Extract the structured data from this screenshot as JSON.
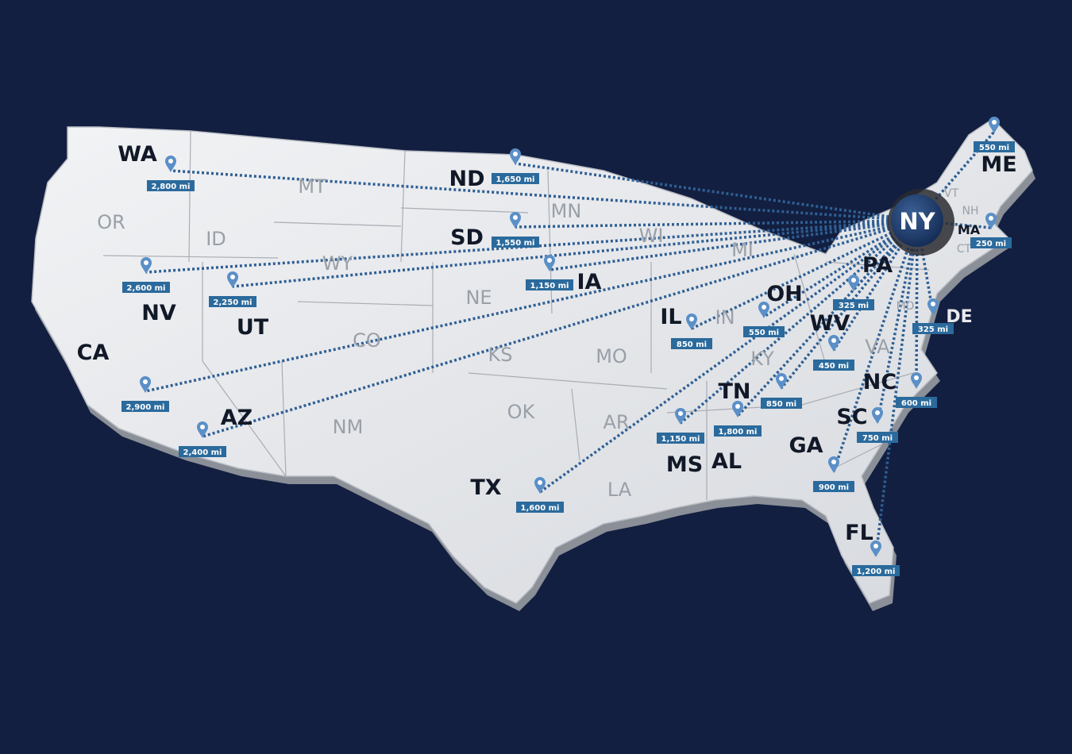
{
  "hub": {
    "label": "NY",
    "color": "#1f3d6e"
  },
  "colors": {
    "background": "#131f40",
    "route": "#2f5f94",
    "label_box": "#2b6a9c",
    "pin": "#5b8fc7",
    "land": "#e4e6ea"
  },
  "states_highlighted": [
    "WA",
    "ND",
    "SD",
    "IA",
    "NV",
    "UT",
    "CA",
    "AZ",
    "TX",
    "IL",
    "OH",
    "PA",
    "WV",
    "DE",
    "TN",
    "NC",
    "SC",
    "GA",
    "MS",
    "AL",
    "FL",
    "ME",
    "MA"
  ],
  "states_other": [
    "OR",
    "MT",
    "ID",
    "WY",
    "MN",
    "WI",
    "MI",
    "NE",
    "CO",
    "KS",
    "MO",
    "IN",
    "KY",
    "NM",
    "OK",
    "AR",
    "LA",
    "VA",
    "MD",
    "VT",
    "NH",
    "CT"
  ],
  "routes": [
    {
      "state": "WA",
      "distance": "2,800 mi"
    },
    {
      "state": "ND",
      "distance": "1,650 mi"
    },
    {
      "state": "SD",
      "distance": "1,550 mi"
    },
    {
      "state": "IA",
      "distance": "1,150 mi"
    },
    {
      "state": "NV",
      "distance": "2,600 mi"
    },
    {
      "state": "UT",
      "distance": "2,250 mi"
    },
    {
      "state": "CA",
      "distance": "2,900 mi"
    },
    {
      "state": "AZ",
      "distance": "2,400 mi"
    },
    {
      "state": "TX",
      "distance": "1,600 mi"
    },
    {
      "state": "IL",
      "distance": "850 mi"
    },
    {
      "state": "OH",
      "distance": "550 mi"
    },
    {
      "state": "PA",
      "distance": "325 mi"
    },
    {
      "state": "DE",
      "distance": "325 mi"
    },
    {
      "state": "WV",
      "distance": "450 mi"
    },
    {
      "state": "TN",
      "distance": "850 mi"
    },
    {
      "state": "MS",
      "distance": "1,150 mi"
    },
    {
      "state": "AL",
      "distance": "1,800 mi"
    },
    {
      "state": "NC",
      "distance": "600 mi"
    },
    {
      "state": "SC",
      "distance": "750 mi"
    },
    {
      "state": "GA",
      "distance": "900 mi"
    },
    {
      "state": "FL",
      "distance": "1,200 mi"
    },
    {
      "state": "ME",
      "distance": "550 mi"
    },
    {
      "state": "MA",
      "distance": "250 mi"
    }
  ]
}
